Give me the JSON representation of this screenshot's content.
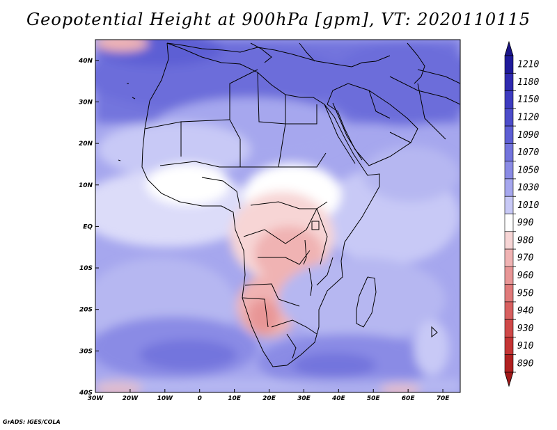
{
  "title": "Geopotential Height at 900hPa [gpm], VT: 2020110115",
  "credit": "GrADS: IGES/COLA",
  "map": {
    "lon_range": [
      -30,
      75
    ],
    "lat_range": [
      -40,
      45
    ],
    "lon_ticks": [
      {
        "value": -30,
        "label": "30W"
      },
      {
        "value": -20,
        "label": "20W"
      },
      {
        "value": -10,
        "label": "10W"
      },
      {
        "value": 0,
        "label": "0"
      },
      {
        "value": 10,
        "label": "10E"
      },
      {
        "value": 20,
        "label": "20E"
      },
      {
        "value": 30,
        "label": "30E"
      },
      {
        "value": 40,
        "label": "40E"
      },
      {
        "value": 50,
        "label": "50E"
      },
      {
        "value": 60,
        "label": "60E"
      },
      {
        "value": 70,
        "label": "70E"
      }
    ],
    "lat_ticks": [
      {
        "value": 40,
        "label": "40N"
      },
      {
        "value": 30,
        "label": "30N"
      },
      {
        "value": 20,
        "label": "20N"
      },
      {
        "value": 10,
        "label": "10N"
      },
      {
        "value": 0,
        "label": "EQ"
      },
      {
        "value": -10,
        "label": "10S"
      },
      {
        "value": -20,
        "label": "20S"
      },
      {
        "value": -30,
        "label": "30S"
      },
      {
        "value": -40,
        "label": "40S"
      }
    ]
  },
  "colorbar": {
    "levels": [
      {
        "label": "1210",
        "color": "#1f1a9a"
      },
      {
        "label": "1180",
        "color": "#2f2ab0"
      },
      {
        "label": "1150",
        "color": "#3d3bc0"
      },
      {
        "label": "1120",
        "color": "#4c4cca"
      },
      {
        "label": "1090",
        "color": "#5d5ed4"
      },
      {
        "label": "1070",
        "color": "#7374dd"
      },
      {
        "label": "1050",
        "color": "#8a8be5"
      },
      {
        "label": "1030",
        "color": "#a6a7ee"
      },
      {
        "label": "1010",
        "color": "#c8c9f6"
      },
      {
        "label": "990",
        "color": "#ffffff"
      },
      {
        "label": "980",
        "color": "#f7d5d5"
      },
      {
        "label": "970",
        "color": "#f0b3b3"
      },
      {
        "label": "960",
        "color": "#e89696"
      },
      {
        "label": "950",
        "color": "#e07a7a"
      },
      {
        "label": "940",
        "color": "#d86060"
      },
      {
        "label": "930",
        "color": "#cf4848"
      },
      {
        "label": "910",
        "color": "#c43434"
      },
      {
        "label": "890",
        "color": "#b02020"
      }
    ],
    "top_arrow_color": "#1a1488",
    "bottom_arrow_color": "#a01818"
  }
}
